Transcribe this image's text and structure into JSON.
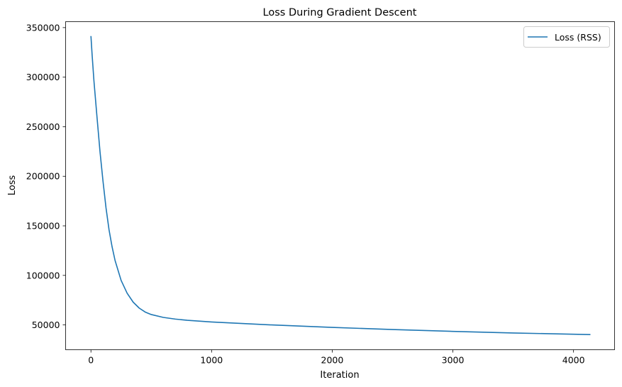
{
  "chart_data": {
    "type": "line",
    "title": "Loss During Gradient Descent",
    "xlabel": "Iteration",
    "ylabel": "Loss",
    "xlim": [
      -210,
      4340
    ],
    "ylim": [
      25000,
      356000
    ],
    "xticks": [
      0,
      1000,
      2000,
      3000,
      4000
    ],
    "yticks": [
      50000,
      100000,
      150000,
      200000,
      250000,
      300000,
      350000
    ],
    "grid": false,
    "legend_position": "top-right",
    "series": [
      {
        "name": "Loss (RSS)",
        "color": "#1f77b4",
        "x": [
          0,
          10,
          25,
          50,
          75,
          100,
          125,
          150,
          175,
          200,
          250,
          300,
          350,
          400,
          450,
          500,
          600,
          700,
          800,
          1000,
          1500,
          2000,
          2500,
          3000,
          3500,
          4000,
          4140
        ],
        "y": [
          341500,
          322000,
          296000,
          260000,
          225000,
          195000,
          168000,
          146000,
          129000,
          115000,
          95000,
          82000,
          73000,
          67000,
          63000,
          60500,
          57600,
          55900,
          54700,
          53000,
          50000,
          47500,
          45400,
          43500,
          41900,
          40600,
          40300
        ]
      }
    ]
  }
}
